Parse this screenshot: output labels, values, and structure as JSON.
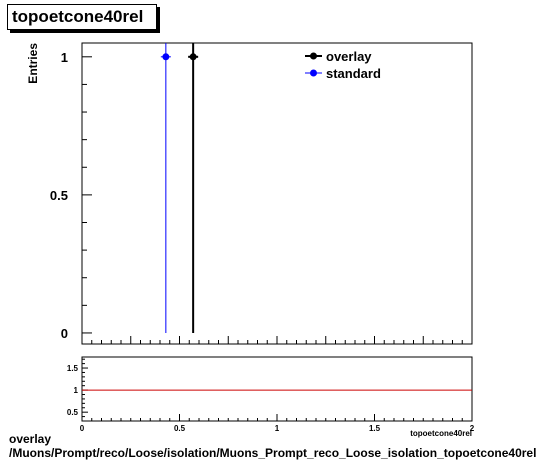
{
  "title": "topoetcone40rel",
  "footer": {
    "line1": "overlay",
    "line2": "/Muons/Prompt/reco/Loose/isolation/Muons_Prompt_reco_Loose_isolation_topoetcone40rel"
  },
  "colors": {
    "overlay": "#000000",
    "standard": "#0000ff",
    "ratio_line": "#cc0000"
  },
  "chart_data": [
    {
      "type": "scatter",
      "title": "topoetcone40rel",
      "ylabel": "Entries",
      "xlim": [
        0,
        2
      ],
      "ylim": [
        -0.04,
        1.05
      ],
      "yticks": [
        0,
        0.5,
        1
      ],
      "ytick_labels": [
        "0",
        "0.5",
        "1"
      ],
      "legend": {
        "placement": "top-right",
        "entries": [
          "overlay",
          "standard"
        ]
      },
      "series": [
        {
          "name": "overlay",
          "color": "#000000",
          "points": [
            {
              "x": 0.57,
              "y": 1,
              "yerr": 1
            }
          ]
        },
        {
          "name": "standard",
          "color": "#0000ff",
          "points": [
            {
              "x": 0.43,
              "y": 1,
              "yerr": 1
            }
          ]
        }
      ]
    },
    {
      "type": "line",
      "xlabel": "topoetcone40rel",
      "xlim": [
        0,
        2
      ],
      "ylim": [
        0.3,
        1.75
      ],
      "xticks": [
        0,
        0.5,
        1,
        1.5,
        2
      ],
      "xtick_labels": [
        "0",
        "0.5",
        "1",
        "1.5",
        "2"
      ],
      "yticks": [
        0.5,
        1,
        1.5
      ],
      "ytick_labels": [
        "0.5",
        "1",
        "1.5"
      ],
      "reference_line": 1
    }
  ]
}
